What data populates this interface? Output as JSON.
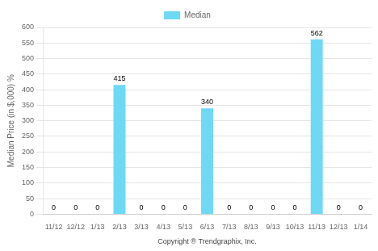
{
  "chart_data": {
    "type": "bar",
    "categories": [
      "11/12",
      "12/12",
      "1/13",
      "2/13",
      "3/13",
      "4/13",
      "5/13",
      "6/13",
      "7/13",
      "8/13",
      "9/13",
      "10/13",
      "11/13",
      "12/13",
      "1/14"
    ],
    "series": [
      {
        "name": "Median",
        "color": "#6DD9F5",
        "values": [
          0,
          0,
          0,
          415,
          0,
          0,
          0,
          340,
          0,
          0,
          0,
          0,
          562,
          0,
          0
        ]
      }
    ],
    "ylabel": "Median Price (in $,000) %",
    "xlabel": "Copyright ® Trendgraphix, Inc.",
    "ylim": [
      0,
      600
    ],
    "yticks": [
      0,
      50,
      100,
      150,
      200,
      250,
      300,
      350,
      400,
      450,
      500,
      550,
      600
    ],
    "grid": true,
    "legend": "top",
    "data_labels": true
  }
}
